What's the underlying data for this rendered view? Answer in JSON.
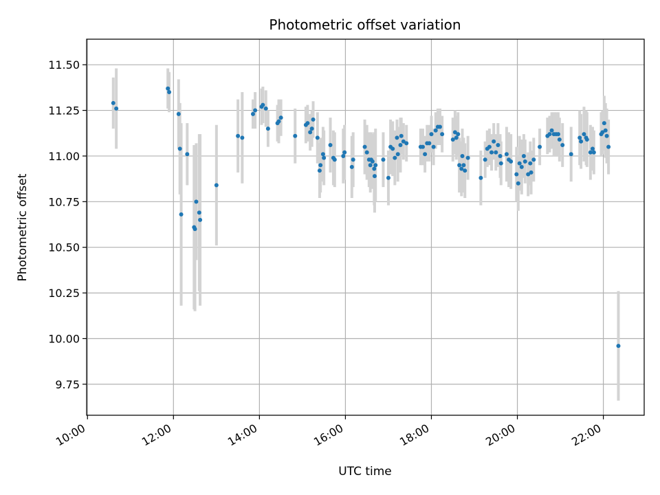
{
  "chart_data": {
    "type": "scatter",
    "title": "Photometric offset variation",
    "xlabel": "UTC time",
    "ylabel": "Photometric offset",
    "x_unit": "UTC hours of day",
    "xlim": [
      9.98,
      22.95
    ],
    "ylim": [
      9.58,
      11.64
    ],
    "xticks": [
      10,
      12,
      14,
      16,
      18,
      20,
      22
    ],
    "xtick_labels": [
      "10:00",
      "12:00",
      "14:00",
      "16:00",
      "18:00",
      "20:00",
      "22:00"
    ],
    "yticks": [
      9.75,
      10.0,
      10.25,
      10.5,
      10.75,
      11.0,
      11.25,
      11.5
    ],
    "ytick_labels": [
      "9.75",
      "10.00",
      "10.25",
      "10.50",
      "10.75",
      "11.00",
      "11.25",
      "11.50"
    ],
    "grid": true,
    "marker_color": "#1f77b4",
    "errorbar_color": "#d3d3d3",
    "series": [
      {
        "points": [
          [
            10.6,
            11.29,
            0.14
          ],
          [
            10.67,
            11.26,
            0.22
          ],
          [
            11.87,
            11.37,
            0.11
          ],
          [
            11.9,
            11.35,
            0.11
          ],
          [
            12.12,
            11.23,
            0.19
          ],
          [
            12.15,
            11.04,
            0.25
          ],
          [
            12.18,
            10.68,
            0.5
          ],
          [
            12.32,
            11.01,
            0.17
          ],
          [
            12.48,
            10.61,
            0.45
          ],
          [
            12.5,
            10.6,
            0.45
          ],
          [
            12.53,
            10.75,
            0.32
          ],
          [
            12.6,
            10.69,
            0.43
          ],
          [
            12.62,
            10.65,
            0.47
          ],
          [
            13.0,
            10.84,
            0.33
          ],
          [
            13.5,
            11.11,
            0.2
          ],
          [
            13.6,
            11.1,
            0.25
          ],
          [
            13.85,
            11.23,
            0.08
          ],
          [
            13.9,
            11.25,
            0.1
          ],
          [
            14.05,
            11.27,
            0.1
          ],
          [
            14.08,
            11.28,
            0.1
          ],
          [
            14.15,
            11.26,
            0.1
          ],
          [
            14.2,
            11.15,
            0.1
          ],
          [
            14.42,
            11.18,
            0.1
          ],
          [
            14.45,
            11.19,
            0.12
          ],
          [
            14.5,
            11.21,
            0.1
          ],
          [
            14.83,
            11.11,
            0.15
          ],
          [
            15.08,
            11.17,
            0.1
          ],
          [
            15.12,
            11.18,
            0.1
          ],
          [
            15.18,
            11.13,
            0.1
          ],
          [
            15.22,
            11.15,
            0.1
          ],
          [
            15.25,
            11.2,
            0.1
          ],
          [
            15.35,
            11.1,
            0.14
          ],
          [
            15.4,
            10.92,
            0.15
          ],
          [
            15.42,
            10.95,
            0.15
          ],
          [
            15.48,
            11.01,
            0.15
          ],
          [
            15.5,
            10.99,
            0.15
          ],
          [
            15.65,
            11.06,
            0.15
          ],
          [
            15.72,
            10.99,
            0.15
          ],
          [
            15.75,
            10.98,
            0.15
          ],
          [
            15.95,
            11.0,
            0.15
          ],
          [
            15.98,
            11.02,
            0.15
          ],
          [
            16.15,
            10.94,
            0.17
          ],
          [
            16.18,
            10.98,
            0.15
          ],
          [
            16.45,
            11.05,
            0.15
          ],
          [
            16.5,
            11.02,
            0.15
          ],
          [
            16.55,
            10.98,
            0.15
          ],
          [
            16.58,
            10.95,
            0.15
          ],
          [
            16.6,
            10.98,
            0.15
          ],
          [
            16.63,
            10.97,
            0.15
          ],
          [
            16.67,
            10.93,
            0.2
          ],
          [
            16.68,
            10.89,
            0.2
          ],
          [
            16.7,
            10.95,
            0.2
          ],
          [
            16.88,
            10.98,
            0.15
          ],
          [
            17.0,
            10.88,
            0.15
          ],
          [
            17.05,
            11.05,
            0.15
          ],
          [
            17.1,
            11.04,
            0.15
          ],
          [
            17.15,
            10.99,
            0.15
          ],
          [
            17.2,
            11.1,
            0.1
          ],
          [
            17.22,
            11.01,
            0.15
          ],
          [
            17.28,
            11.06,
            0.15
          ],
          [
            17.3,
            11.11,
            0.1
          ],
          [
            17.35,
            11.08,
            0.1
          ],
          [
            17.42,
            11.07,
            0.1
          ],
          [
            17.75,
            11.05,
            0.1
          ],
          [
            17.8,
            11.05,
            0.1
          ],
          [
            17.85,
            11.01,
            0.1
          ],
          [
            17.9,
            11.07,
            0.1
          ],
          [
            17.95,
            11.07,
            0.1
          ],
          [
            18.0,
            11.12,
            0.1
          ],
          [
            18.05,
            11.05,
            0.1
          ],
          [
            18.1,
            11.14,
            0.1
          ],
          [
            18.15,
            11.16,
            0.1
          ],
          [
            18.2,
            11.16,
            0.1
          ],
          [
            18.25,
            11.12,
            0.1
          ],
          [
            18.5,
            11.09,
            0.12
          ],
          [
            18.55,
            11.13,
            0.12
          ],
          [
            18.58,
            11.1,
            0.12
          ],
          [
            18.62,
            11.12,
            0.12
          ],
          [
            18.65,
            10.95,
            0.15
          ],
          [
            18.7,
            10.93,
            0.15
          ],
          [
            18.72,
            11.0,
            0.15
          ],
          [
            18.75,
            10.95,
            0.15
          ],
          [
            18.78,
            10.92,
            0.15
          ],
          [
            18.85,
            10.99,
            0.12
          ],
          [
            19.15,
            10.88,
            0.15
          ],
          [
            19.25,
            10.98,
            0.1
          ],
          [
            19.3,
            11.04,
            0.1
          ],
          [
            19.35,
            11.05,
            0.1
          ],
          [
            19.4,
            11.02,
            0.1
          ],
          [
            19.45,
            11.08,
            0.1
          ],
          [
            19.5,
            11.02,
            0.1
          ],
          [
            19.55,
            11.06,
            0.12
          ],
          [
            19.6,
            11.0,
            0.12
          ],
          [
            19.62,
            10.96,
            0.12
          ],
          [
            19.75,
            11.01,
            0.15
          ],
          [
            19.8,
            10.98,
            0.15
          ],
          [
            19.85,
            10.97,
            0.15
          ],
          [
            19.98,
            10.9,
            0.15
          ],
          [
            20.02,
            10.85,
            0.15
          ],
          [
            20.05,
            10.96,
            0.15
          ],
          [
            20.1,
            10.94,
            0.15
          ],
          [
            20.15,
            11.0,
            0.12
          ],
          [
            20.18,
            10.97,
            0.12
          ],
          [
            20.25,
            10.9,
            0.12
          ],
          [
            20.3,
            10.96,
            0.12
          ],
          [
            20.32,
            10.91,
            0.12
          ],
          [
            20.38,
            10.98,
            0.12
          ],
          [
            20.52,
            11.05,
            0.1
          ],
          [
            20.7,
            11.11,
            0.1
          ],
          [
            20.75,
            11.12,
            0.1
          ],
          [
            20.8,
            11.14,
            0.1
          ],
          [
            20.85,
            11.12,
            0.12
          ],
          [
            20.9,
            11.12,
            0.12
          ],
          [
            20.95,
            11.12,
            0.12
          ],
          [
            20.98,
            11.09,
            0.12
          ],
          [
            21.05,
            11.06,
            0.12
          ],
          [
            21.25,
            11.01,
            0.15
          ],
          [
            21.45,
            11.1,
            0.15
          ],
          [
            21.48,
            11.08,
            0.15
          ],
          [
            21.55,
            11.12,
            0.15
          ],
          [
            21.6,
            11.1,
            0.15
          ],
          [
            21.62,
            11.09,
            0.15
          ],
          [
            21.7,
            11.02,
            0.15
          ],
          [
            21.75,
            11.04,
            0.12
          ],
          [
            21.78,
            11.02,
            0.12
          ],
          [
            21.95,
            11.12,
            0.12
          ],
          [
            21.98,
            11.13,
            0.12
          ],
          [
            22.02,
            11.18,
            0.15
          ],
          [
            22.05,
            11.14,
            0.15
          ],
          [
            22.08,
            11.11,
            0.15
          ],
          [
            22.12,
            11.05,
            0.15
          ],
          [
            22.35,
            9.96,
            0.3
          ]
        ]
      }
    ]
  }
}
